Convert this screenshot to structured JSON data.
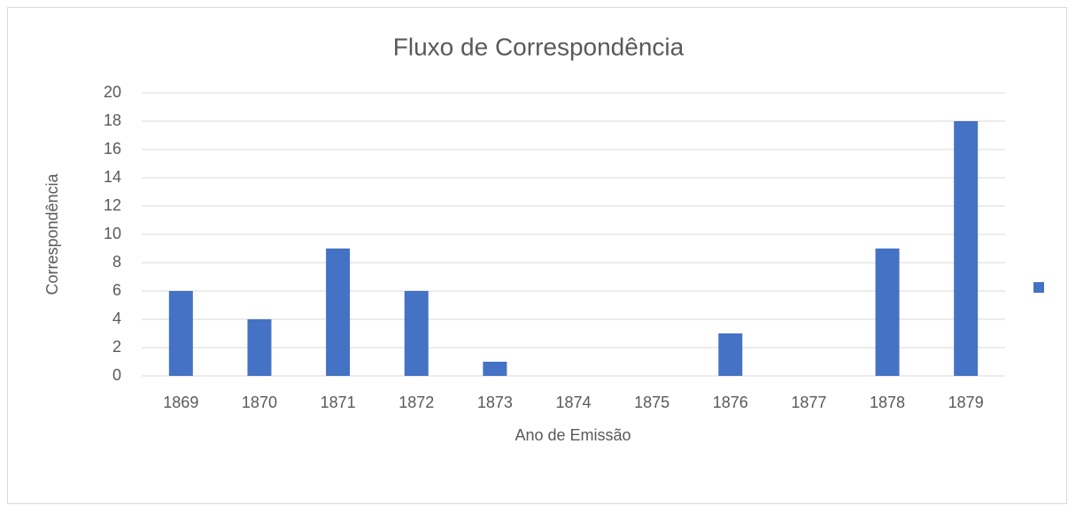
{
  "chart_data": {
    "type": "bar",
    "title": "Fluxo de Correspondência",
    "x_label": "Ano de Emissão",
    "y_label": "Correspondência",
    "categories": [
      "1869",
      "1870",
      "1871",
      "1872",
      "1873",
      "1874",
      "1875",
      "1876",
      "1877",
      "1878",
      "1879"
    ],
    "values": [
      6,
      4,
      9,
      6,
      1,
      0,
      0,
      3,
      0,
      9,
      18
    ],
    "color": "#4472c4",
    "ylim": [
      0,
      20
    ],
    "yticks": [
      0,
      2,
      4,
      6,
      8,
      10,
      12,
      14,
      16,
      18,
      20
    ],
    "grid": true,
    "legend": "right"
  }
}
